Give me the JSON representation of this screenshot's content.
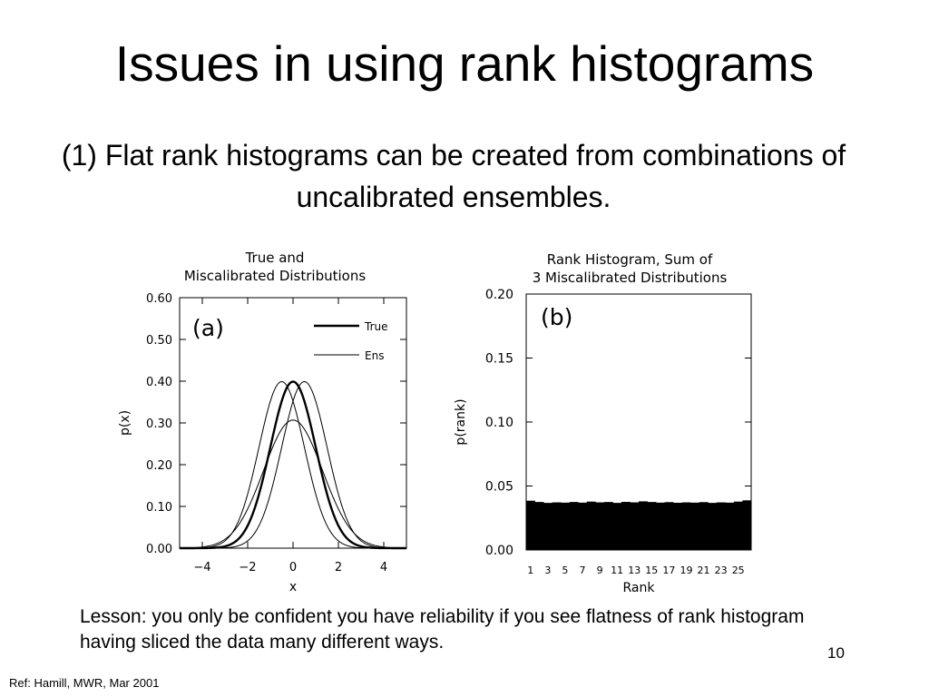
{
  "slide": {
    "title": "Issues in using rank histograms",
    "subtitle": "(1) Flat rank histograms can be created from combinations of uncalibrated ensembles.",
    "lesson": "Lesson: you only be confident you have reliability if you see flatness of rank histogram having sliced the data many different ways.",
    "page_number": "10",
    "reference": "Ref: Hamill, MWR, Mar 2001"
  },
  "chart_data": [
    {
      "type": "line",
      "title_lines": [
        "True and",
        "Miscalibrated Distributions"
      ],
      "panel_label": "(a)",
      "xlabel": "x",
      "ylabel": "p(x)",
      "xlim": [
        -5,
        5
      ],
      "ylim": [
        0,
        0.6
      ],
      "xticks": [
        -4,
        -2,
        0,
        2,
        4
      ],
      "xtick_labels": [
        "−4",
        "−2",
        "0",
        "2",
        "4"
      ],
      "yticks": [
        0.0,
        0.1,
        0.2,
        0.3,
        0.4,
        0.5,
        0.6
      ],
      "ytick_labels": [
        "0.00",
        "0.10",
        "0.20",
        "0.30",
        "0.40",
        "0.50",
        "0.60"
      ],
      "legend_position": "top-right",
      "series": [
        {
          "name": "True",
          "mean": 0,
          "sd": 1.0,
          "style": "thick"
        },
        {
          "name": "Ens",
          "mean": -0.5,
          "sd": 1.0,
          "style": "thin"
        },
        {
          "name": "Ens",
          "mean": 0.5,
          "sd": 1.0,
          "style": "thin",
          "in_legend": false
        },
        {
          "name": "Ens",
          "mean": 0,
          "sd": 1.3,
          "style": "thin",
          "in_legend": false
        }
      ]
    },
    {
      "type": "bar",
      "title_lines": [
        "Rank Histogram, Sum of",
        "3 Miscalibrated Distributions"
      ],
      "panel_label": "(b)",
      "xlabel": "Rank",
      "ylabel": "p(rank)",
      "ylim": [
        0,
        0.2
      ],
      "yticks": [
        0.0,
        0.05,
        0.1,
        0.15,
        0.2
      ],
      "ytick_labels": [
        "0.00",
        "0.05",
        "0.10",
        "0.15",
        "0.20"
      ],
      "xtick_labels": [
        "1",
        "3",
        "5",
        "7",
        "9",
        "11",
        "13",
        "15",
        "17",
        "19",
        "21",
        "23",
        "25"
      ],
      "categories": [
        1,
        2,
        3,
        4,
        5,
        6,
        7,
        8,
        9,
        10,
        11,
        12,
        13,
        14,
        15,
        16,
        17,
        18,
        19,
        20,
        21,
        22,
        23,
        24,
        25,
        26
      ],
      "values": [
        0.0385,
        0.0375,
        0.0368,
        0.0372,
        0.037,
        0.0375,
        0.037,
        0.0378,
        0.0372,
        0.0375,
        0.0368,
        0.0376,
        0.0372,
        0.038,
        0.0375,
        0.037,
        0.0374,
        0.0369,
        0.0372,
        0.037,
        0.0374,
        0.0368,
        0.0372,
        0.037,
        0.0378,
        0.0388
      ]
    }
  ]
}
